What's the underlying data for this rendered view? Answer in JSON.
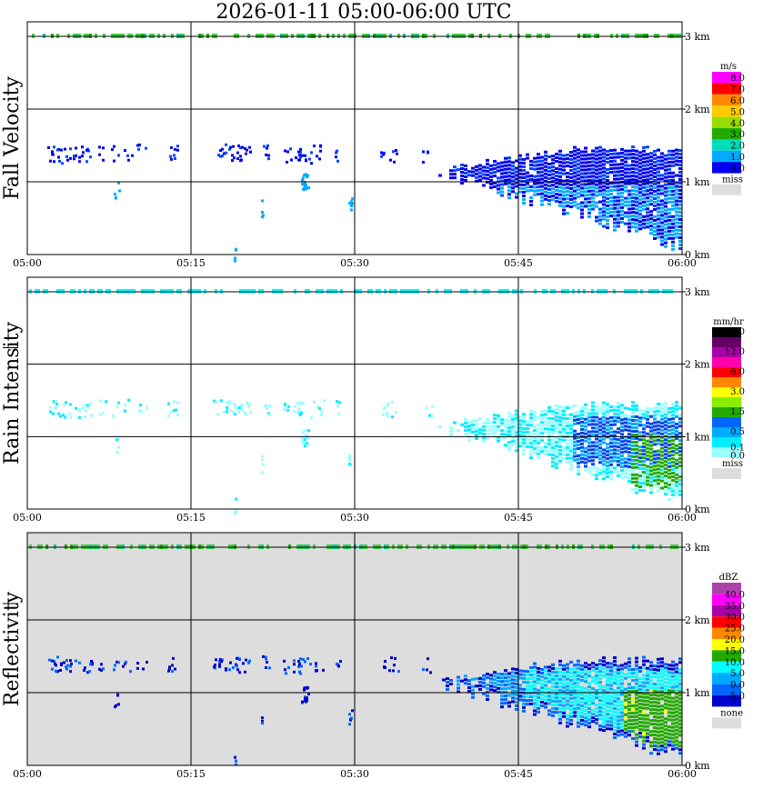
{
  "title": "2026-01-11   05:00-06:00 UTC",
  "chart_data": [
    {
      "type": "heatmap",
      "ylabel": "Fall Velocity",
      "x_ticks": [
        "05:00",
        "05:15",
        "05:30",
        "05:45",
        "06:00"
      ],
      "y_ticks": [
        "0 km",
        "1 km",
        "2 km",
        "3 km"
      ],
      "xlim": [
        "05:00",
        "06:00"
      ],
      "ylim_km": [
        0,
        3.2
      ],
      "grid": true,
      "background": "#ffffff",
      "legend": {
        "unit": "m/s",
        "labels": [
          "8.0",
          "7.0",
          "6.0",
          "5.0",
          "4.0",
          "3.0",
          "2.0",
          "1.0",
          "0.0"
        ],
        "colors": [
          "#ff00ff",
          "#ff0000",
          "#ff8800",
          "#ffcc00",
          "#99dd00",
          "#22aa00",
          "#00ddbb",
          "#00aaff",
          "#0000ee"
        ],
        "miss_label": "miss",
        "miss_color": "#dddddd"
      }
    },
    {
      "type": "heatmap",
      "ylabel": "Rain Intensity",
      "x_ticks": [
        "05:00",
        "05:15",
        "05:30",
        "05:45",
        "06:00"
      ],
      "y_ticks": [
        "0 km",
        "1 km",
        "2 km",
        "3 km"
      ],
      "xlim": [
        "05:00",
        "06:00"
      ],
      "ylim_km": [
        0,
        3.2
      ],
      "grid": true,
      "background": "#ffffff",
      "legend": {
        "unit": "mm/hr",
        "labels": [
          "48.0",
          "12.0",
          "6.0",
          "3.0",
          "1.5",
          "0.5",
          "0.1",
          "0.0"
        ],
        "colors": [
          "#000000",
          "#660066",
          "#aa00aa",
          "#ff00aa",
          "#ff0000",
          "#ff8800",
          "#ffff00",
          "#88ee00",
          "#22aa00",
          "#0066ff",
          "#00aaff",
          "#00eeff",
          "#99ffff"
        ],
        "miss_label": "miss",
        "miss_color": "#dddddd"
      }
    },
    {
      "type": "heatmap",
      "ylabel": "Reflectivity",
      "x_ticks": [
        "05:00",
        "05:15",
        "05:30",
        "05:45",
        "06:00"
      ],
      "y_ticks": [
        "0 km",
        "1 km",
        "2 km",
        "3 km"
      ],
      "xlim": [
        "05:00",
        "06:00"
      ],
      "ylim_km": [
        0,
        3.2
      ],
      "grid": true,
      "background": "#dddddd",
      "legend": {
        "unit": "dBZ",
        "labels": [
          "40.0",
          "35.0",
          "30.0",
          "25.0",
          "20.0",
          "15.0",
          "10.0",
          "5.0",
          "0.0",
          "-5.0"
        ],
        "colors": [
          "#aa44aa",
          "#ff00ff",
          "#aa00aa",
          "#ff0000",
          "#ff8800",
          "#ffff00",
          "#22aa00",
          "#00ffff",
          "#00aaff",
          "#0066ff",
          "#0000cc"
        ],
        "miss_label": "none",
        "miss_color": "#dddddd"
      }
    }
  ],
  "echo_colors": {
    "fv_dark": "#0000ee",
    "fv_mid": "#0044ff",
    "fv_light": "#00aaff",
    "ri_faint": "#99ffff",
    "ri_light": "#00eeff",
    "ri_mid": "#00aaff",
    "ri_dark": "#0044ee",
    "ri_green": "#22aa00",
    "z_edge": "#0000cc",
    "z_dark": "#0066ff",
    "z_mid": "#00aaff",
    "z_light": "#00ffff",
    "z_green": "#22aa00",
    "z_yellow": "#ffff00",
    "top_green": "#44cc44",
    "top_cyan": "#00ffff"
  }
}
